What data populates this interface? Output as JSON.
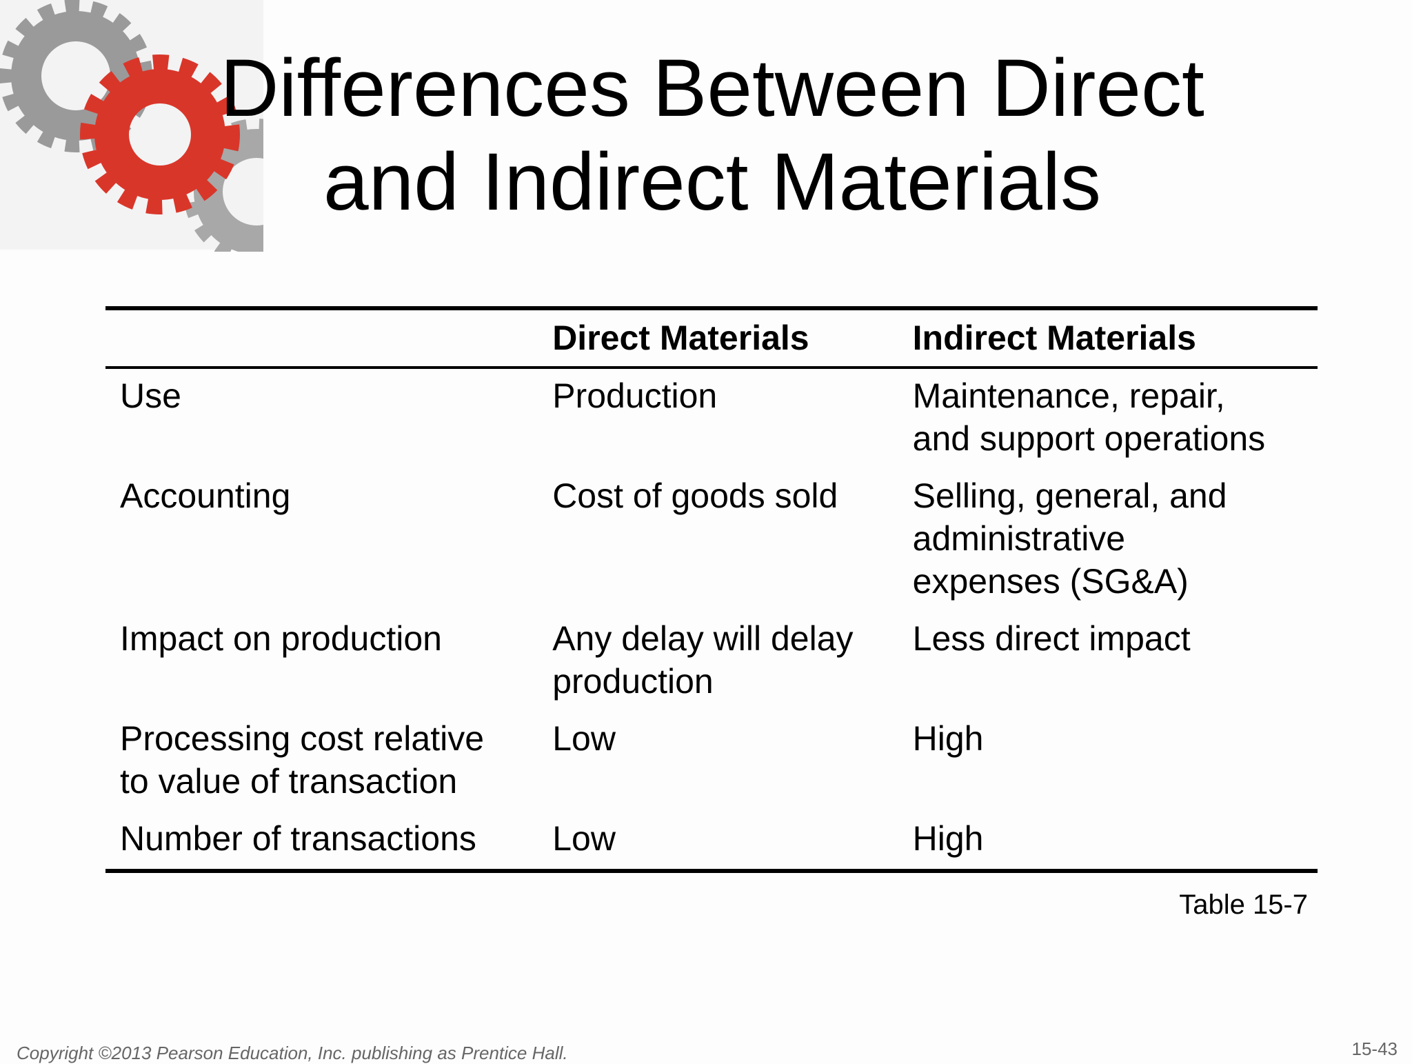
{
  "header": {
    "title_lines": [
      "Differences Between Direct",
      "and Indirect Materials"
    ]
  },
  "table": {
    "columns": [
      "Direct Materials",
      "Indirect Materials"
    ],
    "rows": [
      [
        [
          "Use"
        ],
        [
          "Production"
        ],
        [
          "Maintenance, repair,",
          "and support operations"
        ]
      ],
      [
        [
          "Accounting"
        ],
        [
          "Cost of goods sold"
        ],
        [
          "Selling, general, and",
          "administrative",
          "expenses (SG&A)"
        ]
      ],
      [
        [
          "Impact on production"
        ],
        [
          "Any delay will delay",
          "production"
        ],
        [
          "Less direct impact"
        ]
      ],
      [
        [
          "Processing cost relative",
          "to value of transaction"
        ],
        [
          "Low"
        ],
        [
          "High"
        ]
      ],
      [
        [
          "Number of transactions"
        ],
        [
          "Low"
        ],
        [
          "High"
        ]
      ]
    ],
    "caption": "Table 15-7"
  },
  "footer": {
    "copyright": "Copyright ©2013 Pearson Education, Inc. publishing as Prentice Hall.",
    "page_number": "15-43"
  }
}
